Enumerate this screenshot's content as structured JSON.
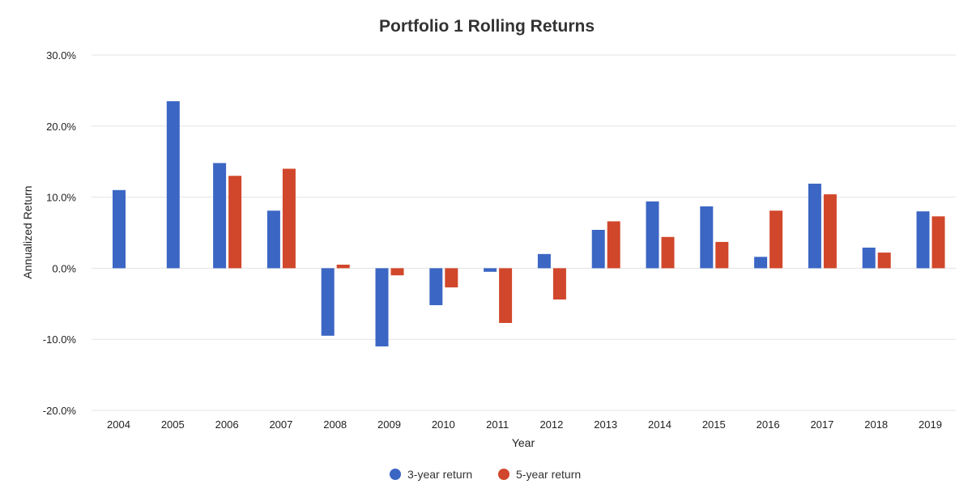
{
  "chart_data": {
    "type": "bar",
    "title": "Portfolio 1 Rolling Returns",
    "xlabel": "Year",
    "ylabel": "Annualized Return",
    "ylim": [
      -20,
      30
    ],
    "yticks": [
      30,
      20,
      10,
      0,
      -10,
      -20
    ],
    "ytick_labels": [
      "30.0%",
      "20.0%",
      "10.0%",
      "0.0%",
      "-10.0%",
      "-20.0%"
    ],
    "categories": [
      "2004",
      "2005",
      "2006",
      "2007",
      "2008",
      "2009",
      "2010",
      "2011",
      "2012",
      "2013",
      "2014",
      "2015",
      "2016",
      "2017",
      "2018",
      "2019"
    ],
    "series": [
      {
        "name": "3-year return",
        "color": "#3b66c4",
        "values": [
          11.0,
          23.5,
          14.8,
          8.1,
          -9.5,
          -11.0,
          -5.2,
          -0.5,
          2.0,
          5.4,
          9.4,
          8.7,
          1.6,
          11.9,
          2.9,
          8.0
        ]
      },
      {
        "name": "5-year return",
        "color": "#d1472b",
        "values": [
          null,
          null,
          13.0,
          14.0,
          0.5,
          -1.0,
          -2.7,
          -7.7,
          -4.4,
          6.6,
          4.4,
          3.7,
          8.1,
          10.4,
          2.2,
          7.3
        ]
      }
    ],
    "grid": true,
    "legend_position": "bottom-center"
  }
}
